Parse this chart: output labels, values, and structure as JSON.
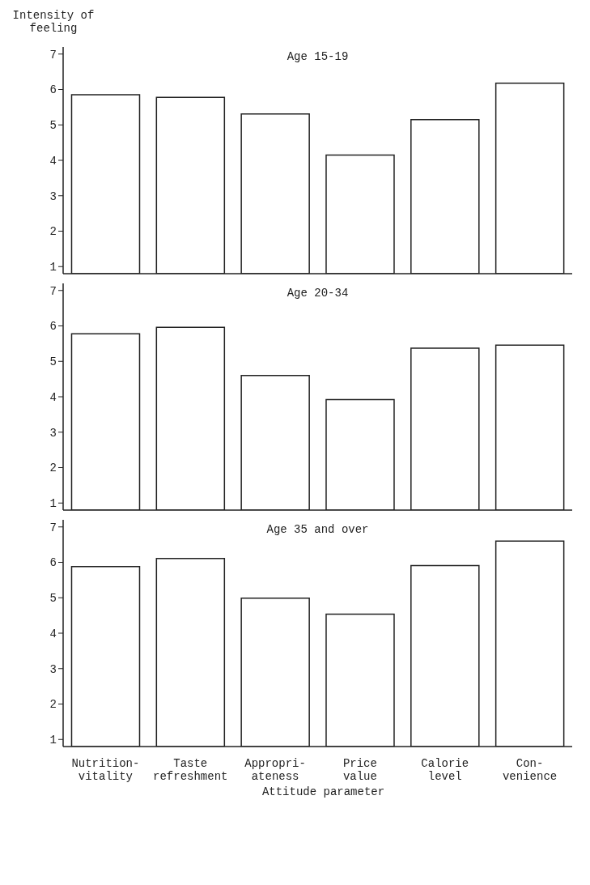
{
  "chart_data": [
    {
      "type": "bar",
      "title": "Age 15-19",
      "ylabel": "Intensity of\nfeeling",
      "categories": [
        null,
        null,
        null,
        null,
        null,
        null
      ],
      "values": [
        5.85,
        5.78,
        5.31,
        4.15,
        5.15,
        6.18
      ],
      "color": "#ffffff",
      "ylim": [
        0.8,
        7.2
      ],
      "yticks": [
        1,
        2,
        3,
        4,
        5,
        6,
        7
      ],
      "tick_labels": "y"
    },
    {
      "type": "bar",
      "title": "Age 20-34",
      "categories": [
        null,
        null,
        null,
        null,
        null,
        null
      ],
      "values": [
        5.78,
        5.96,
        4.6,
        3.92,
        5.37,
        5.46
      ],
      "color": "#ffffff",
      "ylim": [
        0.8,
        7.2
      ],
      "yticks": [
        1,
        2,
        3,
        4,
        5,
        6,
        7
      ],
      "tick_labels": "y"
    },
    {
      "type": "bar",
      "title": "Age 35 and over",
      "xlabel": "Attitude parameter",
      "categories": [
        "Nutrition-\nvitality",
        "Taste\nrefreshment",
        "Appropri-\nateness",
        "Price\nvalue",
        "Calorie\nlevel",
        "Con-\nvenience"
      ],
      "values": [
        5.88,
        6.11,
        4.99,
        4.54,
        5.91,
        6.6
      ],
      "color": "#ffffff",
      "ylim": [
        0.8,
        7.2
      ],
      "yticks": [
        1,
        2,
        3,
        4,
        5,
        6,
        7
      ]
    }
  ]
}
